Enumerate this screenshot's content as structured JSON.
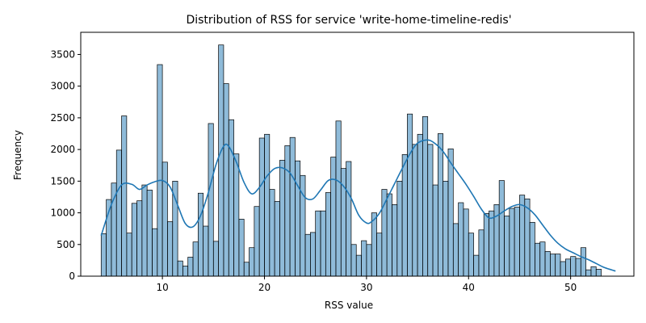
{
  "chart_data": {
    "type": "bar",
    "title": "Distribution of RSS for service 'write-home-timeline-redis'",
    "xlabel": "RSS value",
    "ylabel": "Frequency",
    "xlim": [
      2,
      56.2
    ],
    "ylim": [
      0,
      3850
    ],
    "xticks": [
      10,
      20,
      30,
      40,
      50
    ],
    "yticks": [
      0,
      500,
      1000,
      1500,
      2000,
      2500,
      3000,
      3500
    ],
    "grid": false,
    "legend": "none",
    "bar_color": "#1f77b4",
    "bar_alpha": 0.5,
    "line_color": "#1f77b4",
    "bins": {
      "start": 4.0,
      "width": 0.5,
      "counts": [
        670,
        1210,
        1470,
        1990,
        2530,
        680,
        1150,
        1190,
        1440,
        1360,
        750,
        3340,
        1800,
        860,
        1500,
        240,
        160,
        300,
        540,
        1310,
        790,
        2410,
        550,
        3650,
        3040,
        2470,
        1930,
        900,
        220,
        450,
        1100,
        2180,
        2240,
        1370,
        1180,
        1830,
        2060,
        2190,
        1820,
        1590,
        660,
        690,
        1030,
        1030,
        1320,
        1880,
        2450,
        1700,
        1810,
        500,
        330,
        560,
        500,
        1000,
        680,
        1370,
        1300,
        1130,
        1500,
        1920,
        2560,
        2080,
        2240,
        2520,
        2080,
        1440,
        2250,
        1500,
        2010,
        830,
        1160,
        1060,
        680,
        330,
        730,
        990,
        1030,
        1130,
        1510,
        950,
        1070,
        1090,
        1280,
        1220,
        850,
        520,
        540,
        390,
        350,
        350,
        230,
        270,
        310,
        280,
        450,
        100,
        150,
        110
      ]
    },
    "kde": {
      "x": [
        4.0,
        5.0,
        6.0,
        7.0,
        7.75,
        8.5,
        9.25,
        10.0,
        10.75,
        11.5,
        12.25,
        13.0,
        13.75,
        14.5,
        15.25,
        16.0,
        16.5,
        17.25,
        18.0,
        18.75,
        19.5,
        20.25,
        21.0,
        21.75,
        22.5,
        23.25,
        24.0,
        24.75,
        25.5,
        26.25,
        27.0,
        27.75,
        28.5,
        29.25,
        30.0,
        30.5,
        31.25,
        32.0,
        32.75,
        33.5,
        34.25,
        35.0,
        36.0,
        36.75,
        37.5,
        38.25,
        39.0,
        39.75,
        40.5,
        41.25,
        42.0,
        42.75,
        43.5,
        44.25,
        45.0,
        45.75,
        46.5,
        47.25,
        48.0,
        48.75,
        49.5,
        50.25,
        51.0,
        51.75,
        52.5,
        53.25,
        54.0,
        54.4
      ],
      "y": [
        640,
        1130,
        1440,
        1450,
        1370,
        1440,
        1490,
        1510,
        1410,
        1120,
        830,
        780,
        960,
        1320,
        1760,
        2050,
        2050,
        1800,
        1480,
        1300,
        1400,
        1580,
        1700,
        1710,
        1630,
        1430,
        1240,
        1220,
        1360,
        1510,
        1520,
        1420,
        1230,
        960,
        840,
        860,
        990,
        1220,
        1460,
        1700,
        1930,
        2100,
        2150,
        2090,
        1970,
        1790,
        1620,
        1450,
        1260,
        1060,
        920,
        950,
        1030,
        1100,
        1130,
        1080,
        970,
        810,
        650,
        520,
        430,
        370,
        310,
        260,
        200,
        140,
        100,
        80
      ]
    }
  }
}
